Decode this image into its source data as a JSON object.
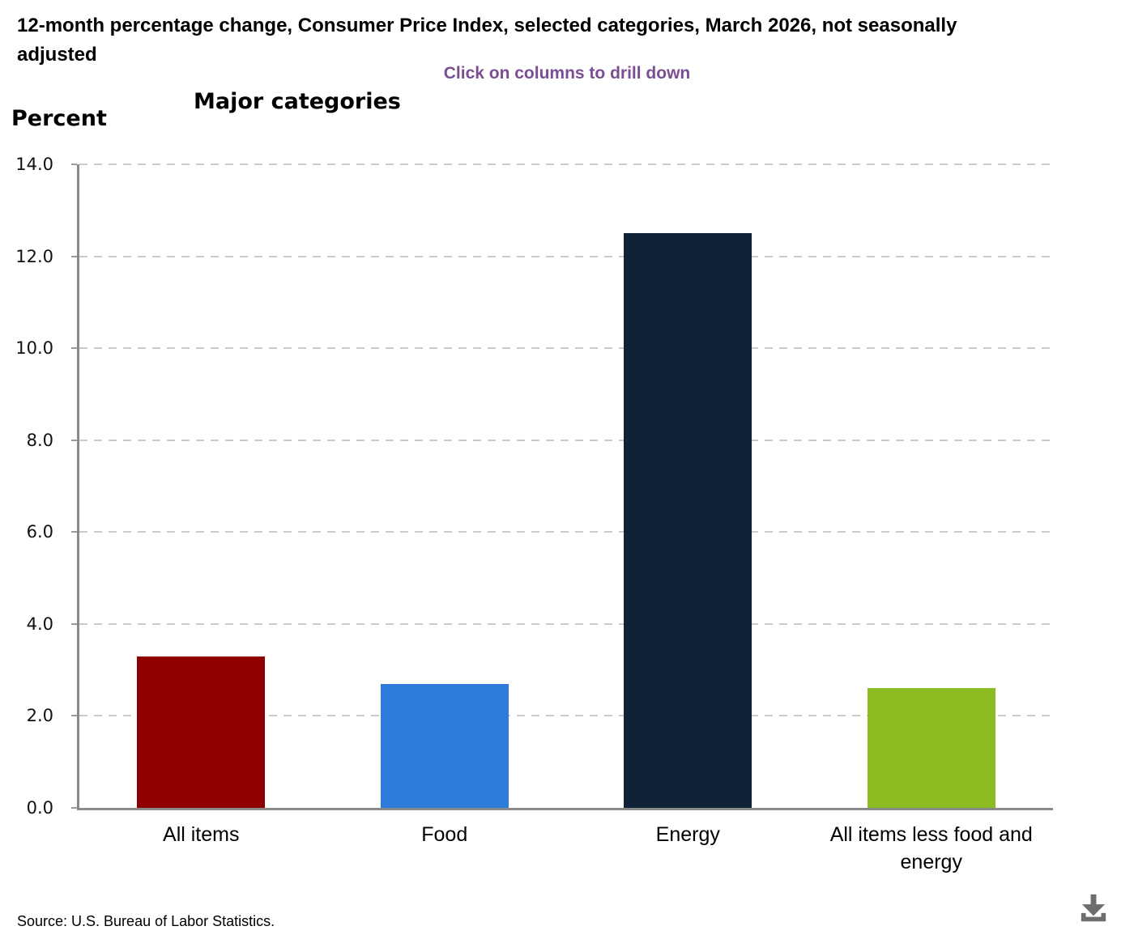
{
  "header": {
    "title": "12-month percentage change, Consumer Price Index, selected categories, March 2026, not seasonally adjusted",
    "subtitle": "Click on columns to drill down"
  },
  "chart": {
    "heading": "Major categories",
    "y_axis_title": "Percent"
  },
  "chart_data": {
    "type": "bar",
    "title": "Major categories",
    "categories": [
      "All items",
      "Food",
      "Energy",
      "All items less food and energy"
    ],
    "values": [
      3.3,
      2.7,
      12.5,
      2.6
    ],
    "bar_colors": [
      "#8E0000",
      "#2D7CD9",
      "#0F2236",
      "#8CBC22"
    ],
    "xlabel": "",
    "ylabel": "Percent",
    "ylim": [
      0,
      14
    ],
    "yticks": [
      0,
      2,
      4,
      6,
      8,
      10,
      12,
      14
    ],
    "ytick_labels": [
      "0.0",
      "2.0",
      "4.0",
      "6.0",
      "8.0",
      "10.0",
      "12.0",
      "14.0"
    ],
    "grid": "horizontal dashed",
    "legend": "none",
    "interaction_hint": "Click on columns to drill down"
  },
  "footer": {
    "source": "Source: U.S. Bureau of Labor Statistics."
  },
  "icons": {
    "download": "download-icon"
  },
  "colors": {
    "subtitle_purple": "#7B4E93",
    "axis_gray": "#8A8A8A",
    "gridline_gray": "#CBCBCB",
    "download_gray": "#6E6E6E"
  }
}
